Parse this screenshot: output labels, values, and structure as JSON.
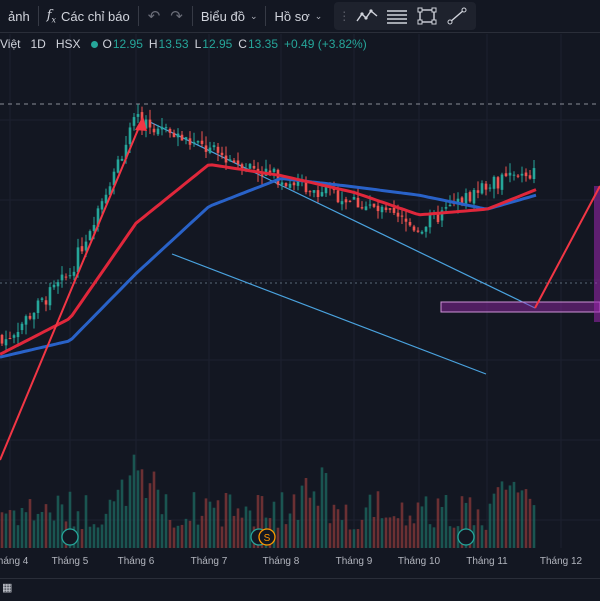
{
  "toolbar": {
    "indicator_label": "ảnh",
    "indicators_label": "Các chỉ báo",
    "chart_type_label": "Biểu đồ",
    "profile_label": "Hồ sơ"
  },
  "legend": {
    "exchange": "Việt",
    "interval": "1D",
    "market": "HSX",
    "open_label": "O",
    "open": "12.95",
    "high_label": "H",
    "high": "13.53",
    "low_label": "L",
    "low": "12.95",
    "close_label": "C",
    "close": "13.35",
    "change": "+0.49 (+3.82%)"
  },
  "colors": {
    "background": "#131722",
    "up": "#26a69a",
    "down": "#ef5350",
    "ma_fast": "#e0273b",
    "ma_slow": "#2962c8",
    "channel": "#4aa3df",
    "zone": "#9c27b0"
  },
  "x_axis": {
    "ticks": [
      "Tháng 4",
      "Tháng 5",
      "Tháng 6",
      "Tháng 7",
      "Tháng 8",
      "Tháng 9",
      "Tháng 10",
      "Tháng 11",
      "Tháng 12"
    ]
  },
  "chart_data": {
    "type": "candlestick",
    "x": [
      "Tháng 4",
      "Tháng 5",
      "Tháng 6",
      "Tháng 7",
      "Tháng 8",
      "Tháng 9",
      "Tháng 10",
      "Tháng 11",
      "Tháng 12"
    ],
    "series": [
      {
        "values": [
          7.6,
          9.8,
          15.3,
          14.2,
          13.2,
          12.4,
          11.4,
          13.0,
          13.35
        ]
      },
      {
        "values": [
          7.1,
          8.2,
          11.6,
          13.7,
          13.3,
          12.7,
          11.9,
          12.1,
          12.8
        ]
      },
      {
        "values": [
          6.9,
          7.4,
          9.8,
          12.2,
          13.2,
          12.9,
          12.6,
          12.1,
          12.6
        ]
      }
    ],
    "events": [
      "Tháng 5",
      "Tháng 8",
      "Tháng 8",
      "Tháng 11"
    ],
    "event_labels": [
      "",
      "",
      "S",
      ""
    ],
    "last_close": 13.35,
    "annotations": [
      "descending channel",
      "resistance zone",
      "projected breakout arrow"
    ],
    "grid": true
  },
  "icons": [
    "fx-icon",
    "undo-icon",
    "redo-icon",
    "line-chart-icon",
    "lines-icon",
    "rectangle-icon",
    "trendline-icon",
    "chevron-down-icon"
  ]
}
